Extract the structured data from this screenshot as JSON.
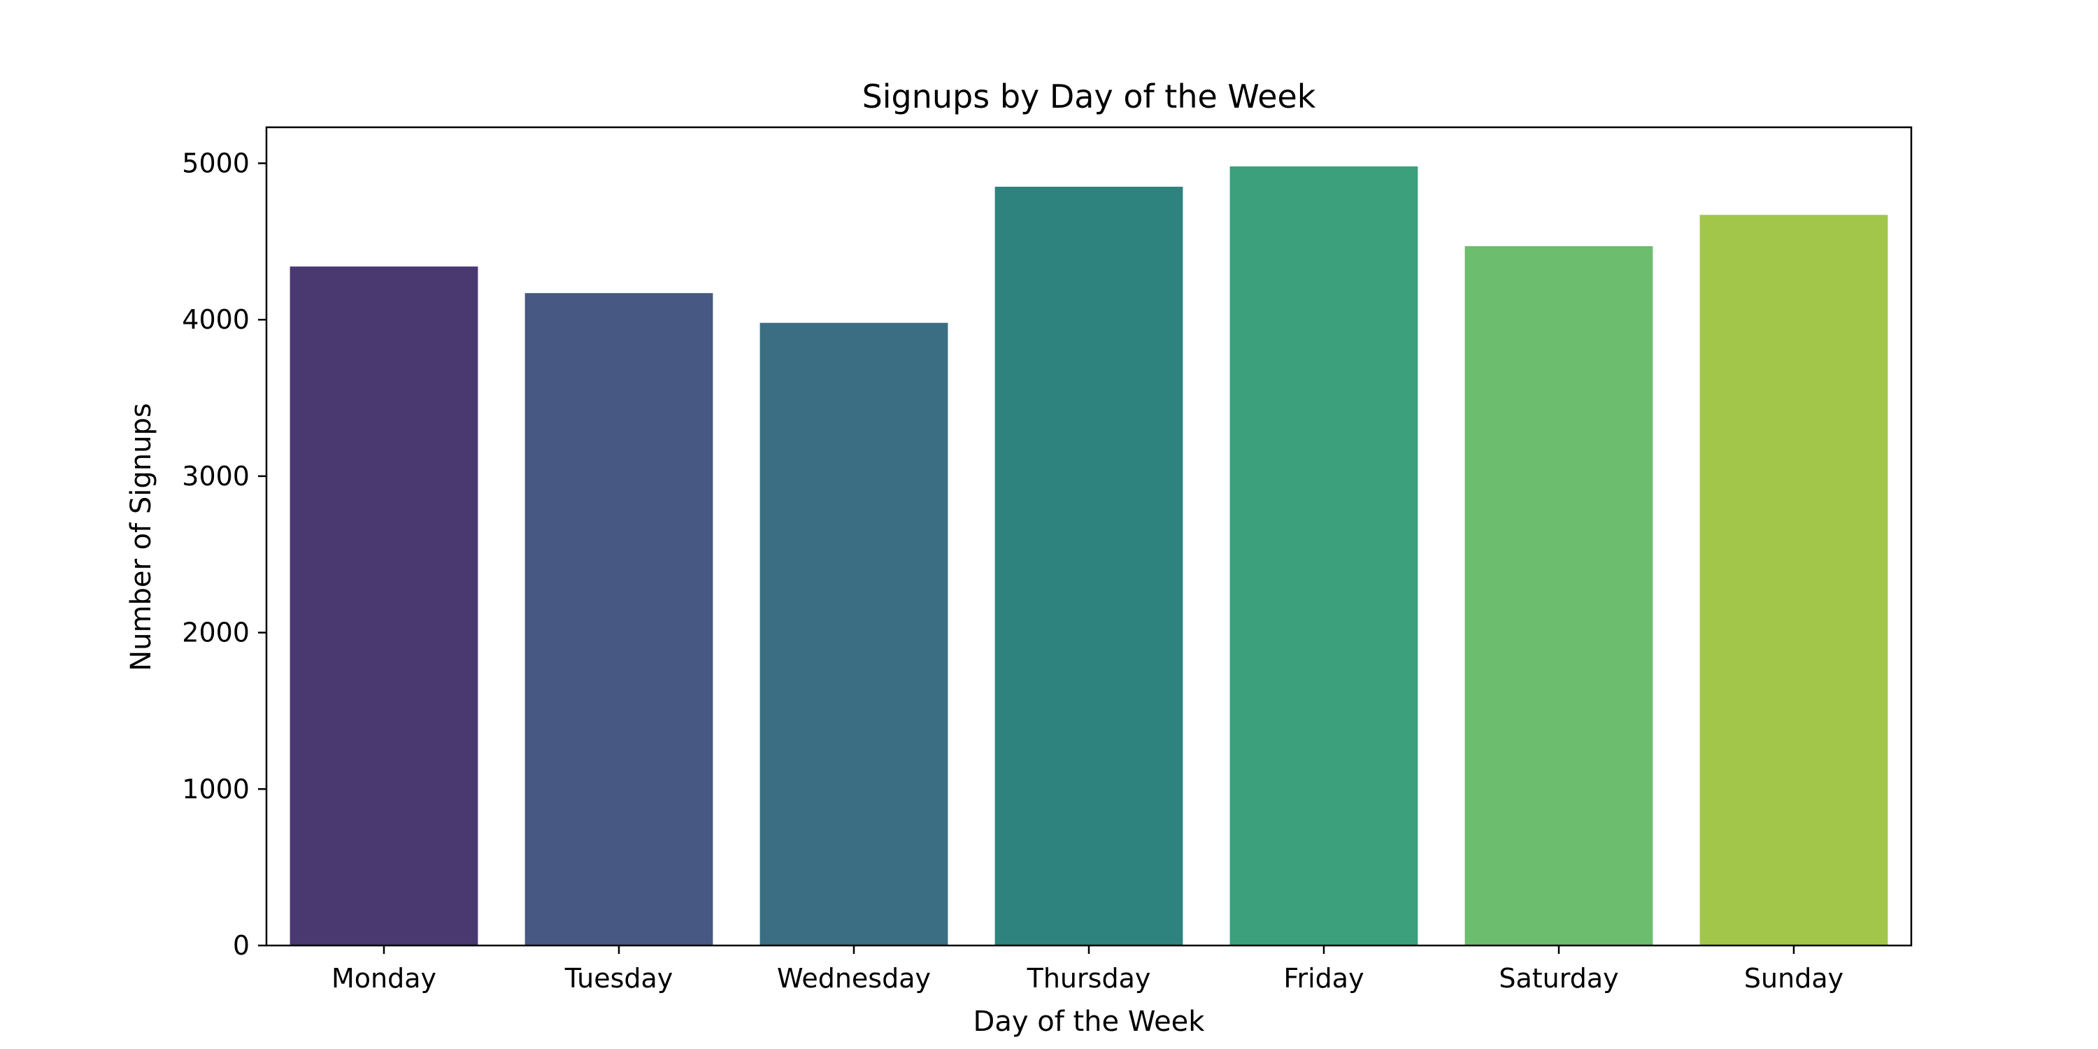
{
  "chart_data": {
    "type": "bar",
    "title": "Signups by Day of the Week",
    "xlabel": "Day of the Week",
    "ylabel": "Number of Signups",
    "categories": [
      "Monday",
      "Tuesday",
      "Wednesday",
      "Thursday",
      "Friday",
      "Saturday",
      "Sunday"
    ],
    "values": [
      4340,
      4170,
      3980,
      4850,
      4980,
      4470,
      4670
    ],
    "colors": [
      "#4a3870",
      "#475982",
      "#3c6e83",
      "#2e837e",
      "#3ca07d",
      "#6cbd6e",
      "#a1c64a"
    ],
    "ylim": [
      0,
      5230
    ],
    "yticks": [
      0,
      1000,
      2000,
      3000,
      4000,
      5000
    ],
    "grid": false,
    "legend": "none"
  }
}
